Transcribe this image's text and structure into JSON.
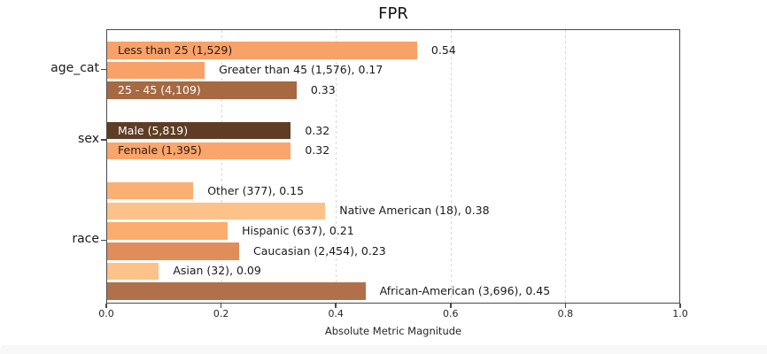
{
  "chart_data": {
    "type": "bar",
    "orientation": "horizontal",
    "title": "FPR",
    "xlabel": "Absolute Metric Magnitude",
    "xlim": [
      0,
      1
    ],
    "xticks": [
      "0.0",
      "0.2",
      "0.4",
      "0.6",
      "0.8",
      "1.0"
    ],
    "grid": "vertical-dashed",
    "groups": [
      {
        "label": "age_cat",
        "bars": [
          {
            "name": "Less than 25",
            "count": "1,529",
            "value": 0.54,
            "bar_label": "Less than 25 (1,529)",
            "bar_label_color": "#2b1c10",
            "annotation": "0.54",
            "color": "#f8a168"
          },
          {
            "name": "Greater than 45",
            "count": "1,576",
            "value": 0.17,
            "bar_label": "",
            "bar_label_color": "",
            "annotation": "Greater than 45 (1,576), 0.17",
            "color": "#f8a168"
          },
          {
            "name": "25 - 45",
            "count": "4,109",
            "value": 0.33,
            "bar_label": "25 - 45 (4,109)",
            "bar_label_color": "#ffffff",
            "annotation": "0.33",
            "color": "#a66942"
          }
        ]
      },
      {
        "label": "sex",
        "bars": [
          {
            "name": "Male",
            "count": "5,819",
            "value": 0.32,
            "bar_label": "Male (5,819)",
            "bar_label_color": "#ffffff",
            "annotation": "0.32",
            "color": "#5e3d24"
          },
          {
            "name": "Female",
            "count": "1,395",
            "value": 0.32,
            "bar_label": "Female (1,395)",
            "bar_label_color": "#2b1c10",
            "annotation": "0.32",
            "color": "#f9a56c"
          }
        ]
      },
      {
        "label": "race",
        "bars": [
          {
            "name": "Other",
            "count": "377",
            "value": 0.15,
            "bar_label": "",
            "bar_label_color": "",
            "annotation": "Other (377), 0.15",
            "color": "#fab072"
          },
          {
            "name": "Native American",
            "count": "18",
            "value": 0.38,
            "bar_label": "",
            "bar_label_color": "",
            "annotation": "Native American (18), 0.38",
            "color": "#fcc289"
          },
          {
            "name": "Hispanic",
            "count": "637",
            "value": 0.21,
            "bar_label": "",
            "bar_label_color": "",
            "annotation": "Hispanic (637), 0.21",
            "color": "#faad6e"
          },
          {
            "name": "Caucasian",
            "count": "2,454",
            "value": 0.23,
            "bar_label": "",
            "bar_label_color": "",
            "annotation": "Caucasian (2,454), 0.23",
            "color": "#e08d5a"
          },
          {
            "name": "Asian",
            "count": "32",
            "value": 0.09,
            "bar_label": "",
            "bar_label_color": "",
            "annotation": "Asian (32), 0.09",
            "color": "#fcc289"
          },
          {
            "name": "African-American",
            "count": "3,696",
            "value": 0.45,
            "bar_label": "",
            "bar_label_color": "",
            "annotation": "African-American (3,696), 0.45",
            "color": "#b1704a"
          }
        ]
      }
    ]
  },
  "palette": {
    "spine_color": "#4a4a4a",
    "grid_color": "#d8d8d8",
    "text_color": "#1a1a1a",
    "page_strip_color": "#f8f8f9"
  }
}
